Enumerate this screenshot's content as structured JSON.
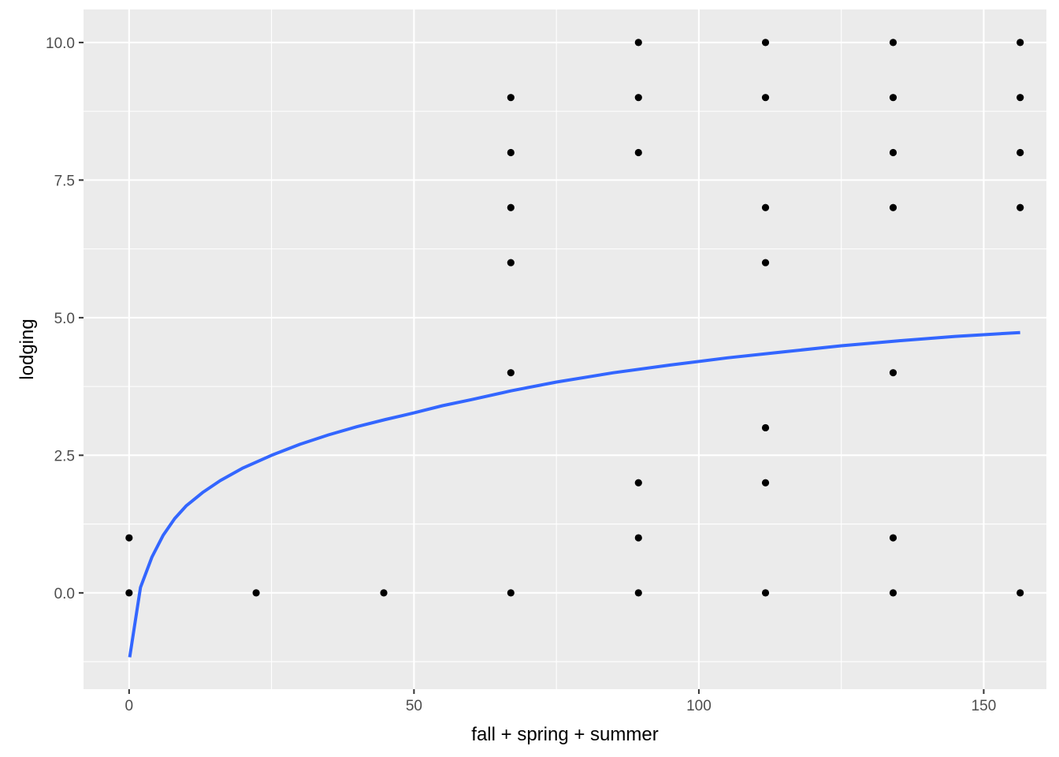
{
  "chart_data": {
    "type": "scatter",
    "title": "",
    "xlabel": "fall + spring + summer",
    "ylabel": "lodging",
    "xlim": [
      -8,
      161
    ],
    "ylim": [
      -1.75,
      10.6
    ],
    "grid": true,
    "background_color": "#EBEBEB",
    "grid_color": "#FFFFFF",
    "point_color": "#000000",
    "line_color": "#3366FF",
    "x_ticks": [
      {
        "value": 0,
        "label": "0"
      },
      {
        "value": 50,
        "label": "50"
      },
      {
        "value": 100,
        "label": "100"
      },
      {
        "value": 150,
        "label": "150"
      }
    ],
    "x_minor_ticks": [
      25,
      75,
      125
    ],
    "y_ticks": [
      {
        "value": 0,
        "label": "0.0"
      },
      {
        "value": 2.5,
        "label": "2.5"
      },
      {
        "value": 5,
        "label": "5.0"
      },
      {
        "value": 7.5,
        "label": "7.5"
      },
      {
        "value": 10,
        "label": "10.0"
      }
    ],
    "y_minor_ticks": [
      -1.25,
      1.25,
      3.75,
      6.25,
      8.75
    ],
    "points": [
      {
        "x": 0,
        "y": 0
      },
      {
        "x": 0,
        "y": 1
      },
      {
        "x": 22.3,
        "y": 0
      },
      {
        "x": 44.7,
        "y": 0
      },
      {
        "x": 67,
        "y": 0
      },
      {
        "x": 67,
        "y": 4
      },
      {
        "x": 67,
        "y": 6
      },
      {
        "x": 67,
        "y": 7
      },
      {
        "x": 67,
        "y": 8
      },
      {
        "x": 67,
        "y": 9
      },
      {
        "x": 89.4,
        "y": 0
      },
      {
        "x": 89.4,
        "y": 1
      },
      {
        "x": 89.4,
        "y": 2
      },
      {
        "x": 89.4,
        "y": 8
      },
      {
        "x": 89.4,
        "y": 9
      },
      {
        "x": 89.4,
        "y": 10
      },
      {
        "x": 111.7,
        "y": 0
      },
      {
        "x": 111.7,
        "y": 2
      },
      {
        "x": 111.7,
        "y": 3
      },
      {
        "x": 111.7,
        "y": 6
      },
      {
        "x": 111.7,
        "y": 7
      },
      {
        "x": 111.7,
        "y": 9
      },
      {
        "x": 111.7,
        "y": 10
      },
      {
        "x": 134.1,
        "y": 0
      },
      {
        "x": 134.1,
        "y": 1
      },
      {
        "x": 134.1,
        "y": 4
      },
      {
        "x": 134.1,
        "y": 7
      },
      {
        "x": 134.1,
        "y": 8
      },
      {
        "x": 134.1,
        "y": 9
      },
      {
        "x": 134.1,
        "y": 10
      },
      {
        "x": 156.4,
        "y": 0
      },
      {
        "x": 156.4,
        "y": 7
      },
      {
        "x": 156.4,
        "y": 8
      },
      {
        "x": 156.4,
        "y": 9
      },
      {
        "x": 156.4,
        "y": 10
      }
    ],
    "smooth_line": [
      {
        "x": 0.1,
        "y": -1.17
      },
      {
        "x": 2,
        "y": 0.1
      },
      {
        "x": 4,
        "y": 0.65
      },
      {
        "x": 6,
        "y": 1.05
      },
      {
        "x": 8,
        "y": 1.35
      },
      {
        "x": 10,
        "y": 1.58
      },
      {
        "x": 13,
        "y": 1.83
      },
      {
        "x": 16,
        "y": 2.04
      },
      {
        "x": 20,
        "y": 2.27
      },
      {
        "x": 25,
        "y": 2.5
      },
      {
        "x": 30,
        "y": 2.7
      },
      {
        "x": 35,
        "y": 2.87
      },
      {
        "x": 40,
        "y": 3.02
      },
      {
        "x": 45,
        "y": 3.15
      },
      {
        "x": 50,
        "y": 3.27
      },
      {
        "x": 55,
        "y": 3.4
      },
      {
        "x": 60,
        "y": 3.51
      },
      {
        "x": 67,
        "y": 3.67
      },
      {
        "x": 75,
        "y": 3.83
      },
      {
        "x": 85,
        "y": 4.0
      },
      {
        "x": 95,
        "y": 4.14
      },
      {
        "x": 105,
        "y": 4.27
      },
      {
        "x": 115,
        "y": 4.38
      },
      {
        "x": 125,
        "y": 4.49
      },
      {
        "x": 135,
        "y": 4.58
      },
      {
        "x": 145,
        "y": 4.66
      },
      {
        "x": 156.4,
        "y": 4.73
      }
    ]
  }
}
